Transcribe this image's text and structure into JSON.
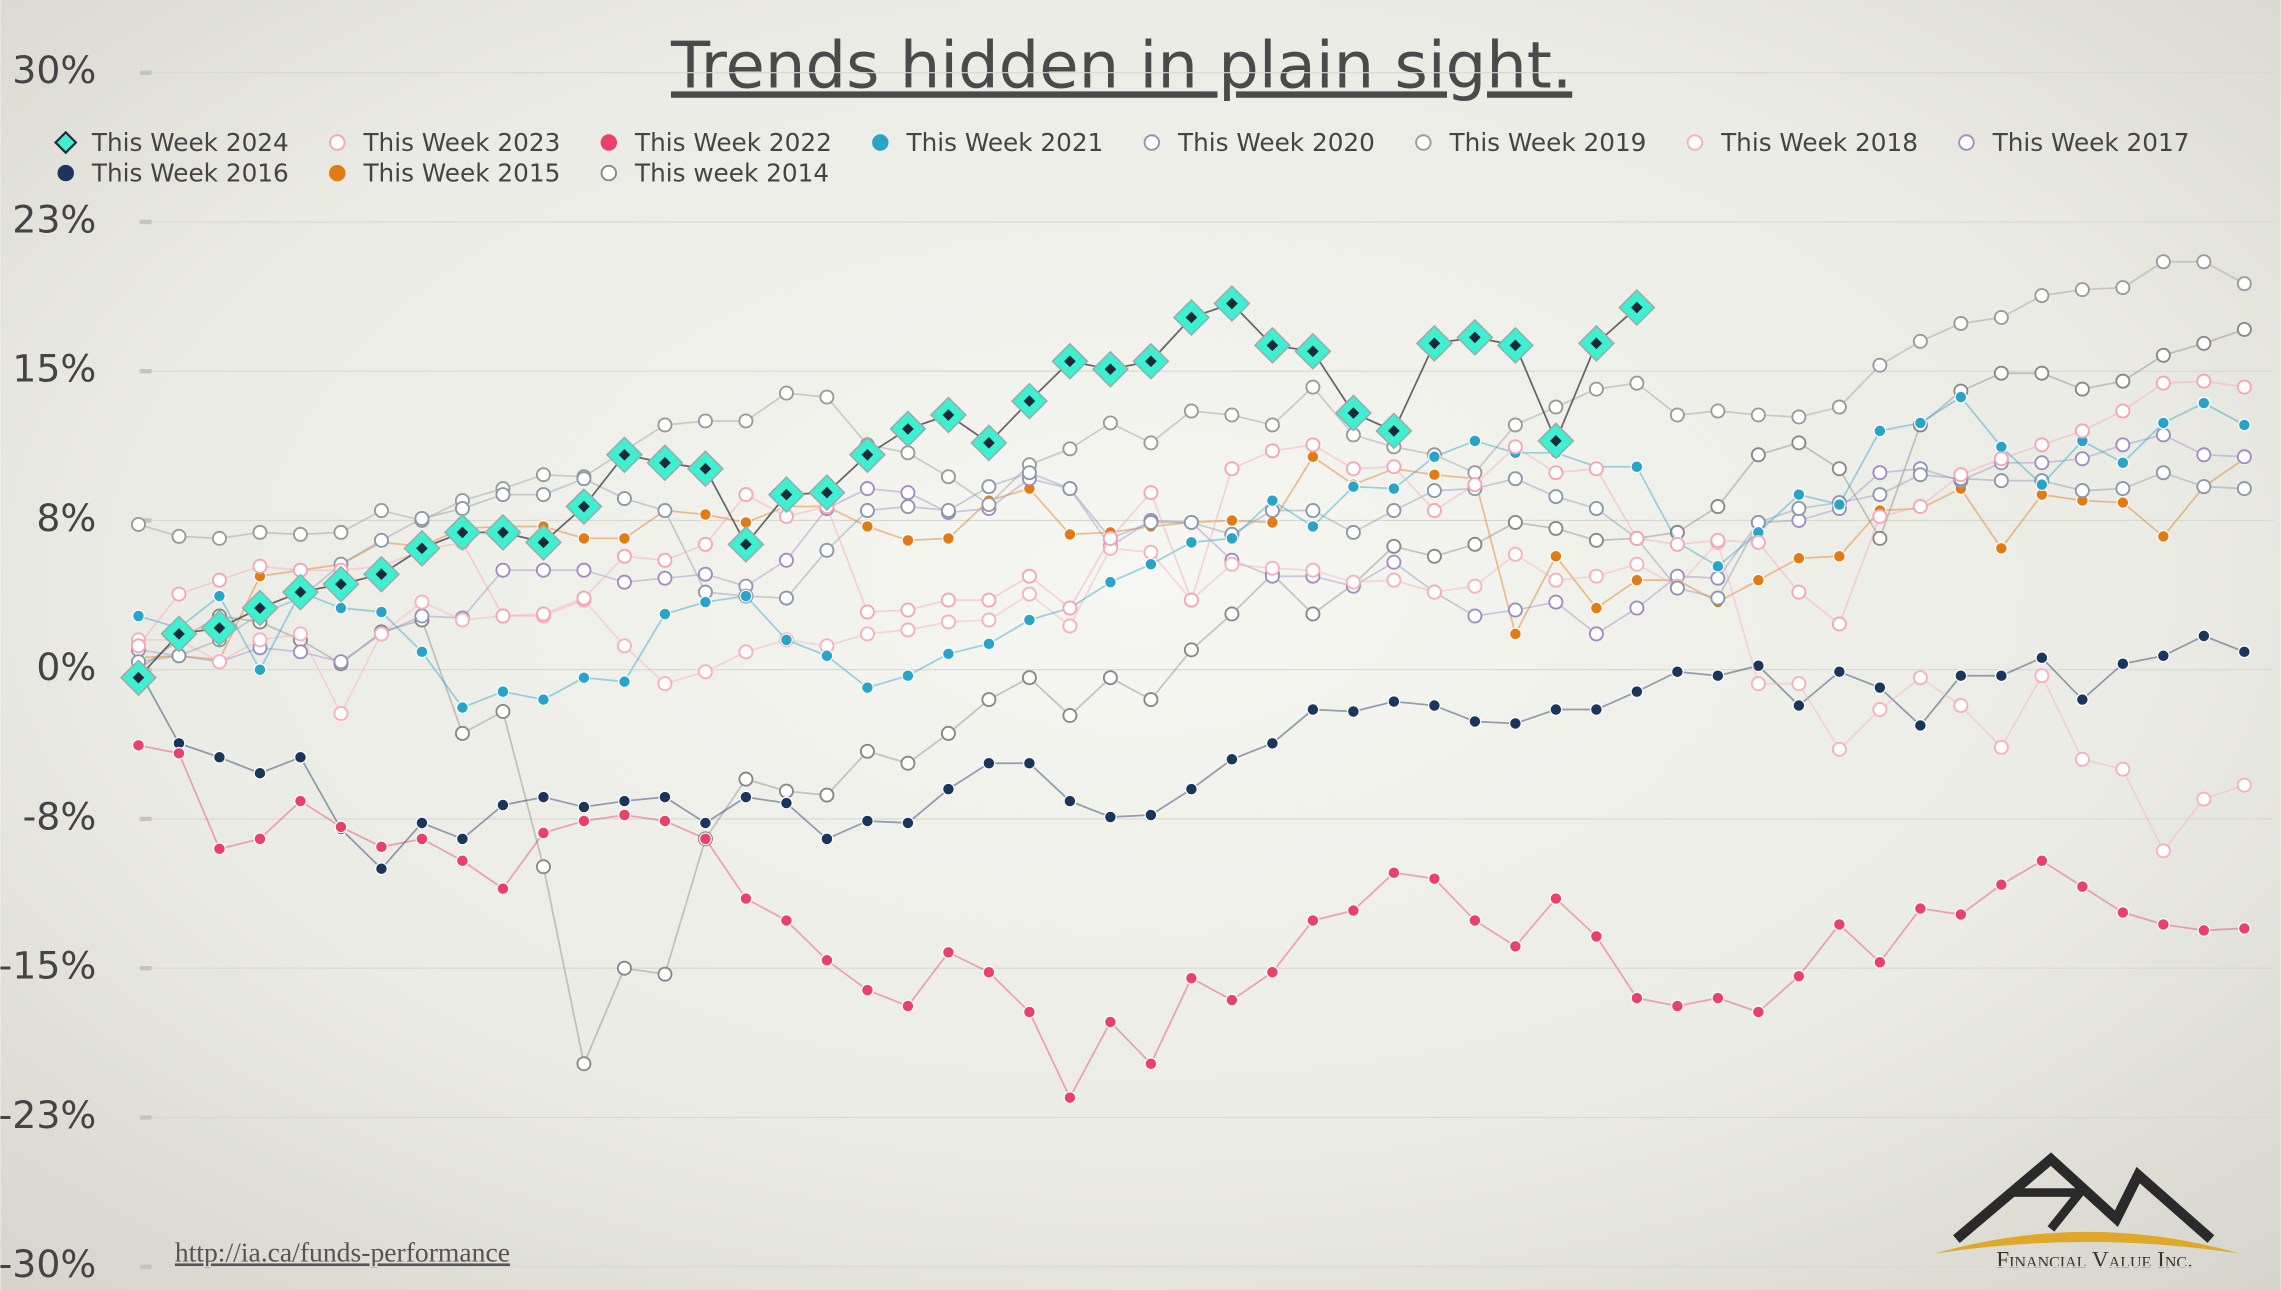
{
  "chart_data": {
    "type": "line",
    "title": "Trends hidden in plain sight.",
    "source": "http://ia.ca/funds-performance",
    "categories": [
      null,
      null,
      null,
      null,
      null,
      null,
      null,
      null,
      null,
      null,
      null,
      null,
      null,
      null,
      null,
      null,
      null,
      null,
      null,
      null,
      null,
      null,
      null,
      null,
      null,
      null,
      null,
      null,
      null,
      null,
      null,
      null,
      null,
      null,
      null,
      null,
      null,
      null,
      null,
      null,
      null,
      null,
      null,
      null,
      null,
      null,
      null,
      null,
      null,
      null,
      null,
      null,
      null
    ],
    "ylim": [
      -30,
      30
    ],
    "yticks": [
      {
        "value": 30,
        "label": "30%"
      },
      {
        "value": 22.5,
        "label": "23%"
      },
      {
        "value": 15,
        "label": "15%"
      },
      {
        "value": 7.5,
        "label": "8%"
      },
      {
        "value": 0,
        "label": "0%"
      },
      {
        "value": -7.5,
        "label": "-8%"
      },
      {
        "value": -15,
        "label": "-15%"
      },
      {
        "value": -22.5,
        "label": "-23%"
      },
      {
        "value": -30,
        "label": "-30%"
      }
    ],
    "grid": true,
    "legend": "top",
    "series": [
      {
        "name": "This Week 2024",
        "color": "#3ff0d0",
        "fill": "#3ff0d0",
        "marker": "diamond",
        "values": [
          -0.4,
          1.8,
          2.1,
          3.1,
          3.9,
          4.3,
          4.8,
          6.1,
          6.9,
          6.9,
          6.4,
          8.2,
          10.8,
          10.4,
          10.1,
          6.3,
          8.8,
          8.9,
          10.8,
          12.1,
          12.8,
          11.4,
          13.5,
          15.5,
          15.1,
          15.5,
          17.7,
          18.4,
          16.3,
          16.0,
          12.9,
          12.0,
          16.4,
          16.7,
          16.3,
          11.5,
          16.4,
          18.2,
          null,
          null,
          null,
          null,
          null,
          null,
          null,
          null,
          null,
          null,
          null,
          null,
          null,
          null,
          null
        ]
      },
      {
        "name": "This Week 2023",
        "color": "#f4a6b5",
        "fill": "#ffffff",
        "marker": "circle",
        "values": [
          1.2,
          3.8,
          4.5,
          5.2,
          5.0,
          5.0,
          5.2,
          6.0,
          6.4,
          2.7,
          2.8,
          3.6,
          5.7,
          5.5,
          6.3,
          8.8,
          7.7,
          8.2,
          2.9,
          3.0,
          3.5,
          3.5,
          4.7,
          3.1,
          6.6,
          8.9,
          3.5,
          10.1,
          11.0,
          11.3,
          10.1,
          10.2,
          8.0,
          9.3,
          11.2,
          9.9,
          10.1,
          6.6,
          6.3,
          6.5,
          6.4,
          3.9,
          2.3,
          7.7,
          8.2,
          9.8,
          10.6,
          11.3,
          12.0,
          13.0,
          14.4,
          14.5,
          14.2
        ]
      },
      {
        "name": "This Week 2022",
        "color": "#e8416a",
        "fill": "#e8416a",
        "marker": "circle",
        "values": [
          -3.8,
          -4.2,
          -9.0,
          -8.5,
          -6.6,
          -7.9,
          -8.9,
          -8.5,
          -9.6,
          -11.0,
          -8.2,
          -7.6,
          -7.3,
          -7.6,
          -8.5,
          -11.5,
          -12.6,
          -14.6,
          -16.1,
          -16.9,
          -14.2,
          -15.2,
          -17.2,
          -21.5,
          -17.7,
          -19.8,
          -15.5,
          -16.6,
          -15.2,
          -12.6,
          -12.1,
          -10.2,
          -10.5,
          -12.6,
          -13.9,
          -11.5,
          -13.4,
          -16.5,
          -16.9,
          -16.5,
          -17.2,
          -15.4,
          -12.8,
          -14.7,
          -12.0,
          -12.3,
          -10.8,
          -9.6,
          -10.9,
          -12.2,
          -12.8,
          -13.1,
          -13.0
        ]
      },
      {
        "name": "This Week 2021",
        "color": "#2aa3c8",
        "fill": "#2aa3c8",
        "marker": "circle",
        "values": [
          2.7,
          2.1,
          3.7,
          0,
          3.9,
          3.1,
          2.9,
          0.9,
          -1.9,
          -1.1,
          -1.5,
          -0.4,
          -0.6,
          2.8,
          3.4,
          3.7,
          1.5,
          0.7,
          -0.9,
          -0.3,
          0.8,
          1.3,
          2.5,
          3.1,
          4.4,
          5.3,
          6.4,
          6.6,
          8.5,
          7.2,
          9.2,
          9.1,
          10.7,
          11.5,
          10.9,
          10.9,
          10.2,
          10.2,
          6.4,
          5.2,
          6.9,
          8.8,
          8.3,
          12.0,
          12.4,
          13.7,
          11.2,
          9.3,
          11.5,
          10.4,
          12.4,
          13.4,
          12.3
        ]
      },
      {
        "name": "This Week 2020",
        "color": "#8a98a8",
        "fill": "#ffffff",
        "marker": "circle",
        "values": [
          0.4,
          0.7,
          1.5,
          2.8,
          3.6,
          5.3,
          6.5,
          7.6,
          8.1,
          8.8,
          8.8,
          9.6,
          8.6,
          8.0,
          3.9,
          3.7,
          3.6,
          6.0,
          8.0,
          8.2,
          8.0,
          9.2,
          9.9,
          9.1,
          6.6,
          7.4,
          7.4,
          6.8,
          8.0,
          8.0,
          6.9,
          8.0,
          9.0,
          9.1,
          9.6,
          8.7,
          8.1,
          6.6,
          4.1,
          3.6,
          7.4,
          8.1,
          8.4,
          8.8,
          9.8,
          9.6,
          9.5,
          9.5,
          9.0,
          9.1,
          9.9,
          9.2,
          9.1
        ]
      },
      {
        "name": "This Week 2019",
        "color": "#9a9a9a",
        "fill": "#ffffff",
        "marker": "circle",
        "values": [
          7.3,
          6.7,
          6.6,
          6.9,
          6.8,
          6.9,
          8.0,
          7.5,
          8.5,
          9.1,
          9.8,
          9.7,
          11.0,
          12.3,
          12.5,
          12.5,
          13.9,
          13.7,
          11.3,
          10.9,
          9.7,
          8.3,
          10.3,
          11.1,
          12.4,
          11.4,
          13.0,
          12.8,
          12.3,
          14.2,
          11.8,
          11.2,
          10.8,
          9.9,
          12.3,
          13.2,
          14.1,
          14.4,
          12.8,
          13.0,
          12.8,
          12.7,
          13.2,
          15.3,
          16.5,
          17.4,
          17.7,
          18.8,
          19.1,
          19.2,
          20.5,
          20.5,
          19.4
        ]
      },
      {
        "name": "This Week 2018",
        "color": "#f7b0bd",
        "fill": "#ffffff",
        "marker": "circle",
        "values": [
          1.5,
          1.5,
          0.4,
          1.5,
          1.8,
          -2.2,
          1.8,
          3.4,
          2.5,
          2.7,
          2.7,
          3.5,
          1.2,
          -0.7,
          -0.1,
          0.9,
          1.5,
          1.2,
          1.8,
          2.0,
          2.4,
          2.5,
          3.8,
          2.2,
          6.1,
          5.9,
          3.5,
          5.3,
          5.1,
          5.0,
          4.4,
          4.5,
          3.9,
          4.2,
          5.8,
          4.5,
          4.7,
          5.3,
          4.2,
          6.4,
          -0.7,
          -0.7,
          -4.0,
          -2.0,
          -0.4,
          -1.8,
          -3.9,
          -0.3,
          -4.5,
          -5.0,
          -9.1,
          -6.5,
          -5.8
        ]
      },
      {
        "name": "This Week 2017",
        "color": "#9b8fc0",
        "fill": "#ffffff",
        "marker": "circle",
        "values": [
          1.0,
          0.7,
          0.4,
          1.1,
          0.9,
          0.4,
          1.8,
          2.7,
          2.6,
          5.0,
          5.0,
          5.0,
          4.4,
          4.6,
          4.8,
          4.2,
          5.5,
          8.1,
          9.1,
          8.9,
          7.9,
          8.1,
          9.6,
          9.1,
          6.2,
          7.5,
          7.4,
          5.5,
          4.7,
          4.7,
          4.2,
          5.4,
          3.9,
          2.7,
          3.0,
          3.4,
          1.8,
          3.1,
          4.7,
          4.6,
          7.4,
          7.5,
          8.1,
          9.9,
          10.1,
          9.5,
          10.4,
          10.4,
          10.6,
          11.3,
          11.8,
          10.8,
          10.7
        ]
      },
      {
        "name": "This Week 2016",
        "color": "#1b365d",
        "fill": "#1b365d",
        "marker": "circle",
        "values": [
          0,
          -3.7,
          -4.4,
          -5.2,
          -4.4,
          -8.0,
          -10.0,
          -7.7,
          -8.5,
          -6.8,
          -6.4,
          -6.9,
          -6.6,
          -6.4,
          -7.7,
          -6.4,
          -6.7,
          -8.5,
          -7.6,
          -7.7,
          -6.0,
          -4.7,
          -4.7,
          -6.6,
          -7.4,
          -7.3,
          -6.0,
          -4.5,
          -3.7,
          -2.0,
          -2.1,
          -1.6,
          -1.8,
          -2.6,
          -2.7,
          -2.0,
          -2.0,
          -1.1,
          -0.1,
          -0.3,
          0.2,
          -1.8,
          -0.1,
          -0.9,
          -2.8,
          -0.3,
          -0.3,
          0.6,
          -1.5,
          0.3,
          0.7,
          1.7,
          0.9
        ]
      },
      {
        "name": "This Week 2015",
        "color": "#e07b16",
        "fill": "#e07b16",
        "marker": "circle",
        "values": [
          0.6,
          0.7,
          0.5,
          4.7,
          5.0,
          5.3,
          6.4,
          6.2,
          7.1,
          7.2,
          7.2,
          6.6,
          6.6,
          8.0,
          7.8,
          7.4,
          8.2,
          8.2,
          7.2,
          6.5,
          6.6,
          8.5,
          9.1,
          6.8,
          6.9,
          7.2,
          7.4,
          7.5,
          7.4,
          10.7,
          9.3,
          10.1,
          9.8,
          9.6,
          1.8,
          5.7,
          3.1,
          4.5,
          4.5,
          3.4,
          4.5,
          5.6,
          5.7,
          8.0,
          8.1,
          9.1,
          6.1,
          8.8,
          8.5,
          8.4,
          6.7,
          9.2,
          10.6
        ]
      },
      {
        "name": "This week 2014",
        "color": "#888888",
        "fill": "#ffffff",
        "marker": "circle",
        "values": [
          0,
          1.5,
          2.7,
          2.4,
          1.5,
          0.3,
          1.9,
          2.5,
          -3.2,
          -2.1,
          -9.9,
          -19.8,
          -15.0,
          -15.3,
          -8.5,
          -5.5,
          -6.1,
          -6.3,
          -4.1,
          -4.7,
          -3.2,
          -1.5,
          -0.4,
          -2.3,
          -0.4,
          -1.5,
          1.0,
          2.8,
          4.8,
          2.8,
          4.3,
          6.2,
          5.7,
          6.3,
          7.4,
          7.1,
          6.5,
          6.6,
          6.9,
          8.2,
          10.8,
          11.4,
          10.1,
          6.6,
          12.3,
          14.0,
          14.9,
          14.9,
          14.1,
          14.5,
          15.8,
          16.4,
          17.1
        ]
      }
    ]
  },
  "logo": "Financial Value Inc."
}
